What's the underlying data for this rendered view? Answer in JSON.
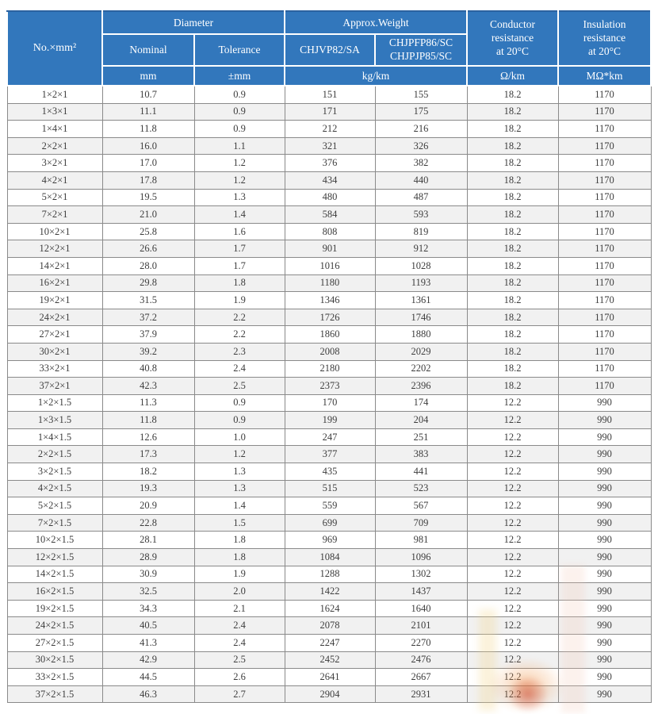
{
  "table": {
    "header": {
      "col_no": "No.×mm²",
      "diameter": "Diameter",
      "nominal": "Nominal",
      "tolerance": "Tolerance",
      "approx_weight": "Approx.Weight",
      "weight_type_1": "CHJVP82/SA",
      "weight_type_2": "CHJPFP86/SC\nCHJPJP85/SC",
      "conductor_resistance": "Conductor\nresistance\nat 20°C",
      "insulation_resistance": "Insulation\nresistance\nat 20°C",
      "unit_mm": "mm",
      "unit_tolerance": "±mm",
      "unit_weight": "kg/km",
      "unit_conductor": "Ω/km",
      "unit_insulation": "MΩ*km"
    },
    "colors": {
      "header_bg": "#3277BC",
      "header_text": "#ffffff",
      "grid": "#8a8a8a",
      "row_bg": "#ffffff",
      "row_alt_bg": "#f1f1f1",
      "text": "#3d3d3d"
    },
    "rows": [
      [
        "1×2×1",
        "10.7",
        "0.9",
        "151",
        "155",
        "18.2",
        "1170"
      ],
      [
        "1×3×1",
        "11.1",
        "0.9",
        "171",
        "175",
        "18.2",
        "1170"
      ],
      [
        "1×4×1",
        "11.8",
        "0.9",
        "212",
        "216",
        "18.2",
        "1170"
      ],
      [
        "2×2×1",
        "16.0",
        "1.1",
        "321",
        "326",
        "18.2",
        "1170"
      ],
      [
        "3×2×1",
        "17.0",
        "1.2",
        "376",
        "382",
        "18.2",
        "1170"
      ],
      [
        "4×2×1",
        "17.8",
        "1.2",
        "434",
        "440",
        "18.2",
        "1170"
      ],
      [
        "5×2×1",
        "19.5",
        "1.3",
        "480",
        "487",
        "18.2",
        "1170"
      ],
      [
        "7×2×1",
        "21.0",
        "1.4",
        "584",
        "593",
        "18.2",
        "1170"
      ],
      [
        "10×2×1",
        "25.8",
        "1.6",
        "808",
        "819",
        "18.2",
        "1170"
      ],
      [
        "12×2×1",
        "26.6",
        "1.7",
        "901",
        "912",
        "18.2",
        "1170"
      ],
      [
        "14×2×1",
        "28.0",
        "1.7",
        "1016",
        "1028",
        "18.2",
        "1170"
      ],
      [
        "16×2×1",
        "29.8",
        "1.8",
        "1180",
        "1193",
        "18.2",
        "1170"
      ],
      [
        "19×2×1",
        "31.5",
        "1.9",
        "1346",
        "1361",
        "18.2",
        "1170"
      ],
      [
        "24×2×1",
        "37.2",
        "2.2",
        "1726",
        "1746",
        "18.2",
        "1170"
      ],
      [
        "27×2×1",
        "37.9",
        "2.2",
        "1860",
        "1880",
        "18.2",
        "1170"
      ],
      [
        "30×2×1",
        "39.2",
        "2.3",
        "2008",
        "2029",
        "18.2",
        "1170"
      ],
      [
        "33×2×1",
        "40.8",
        "2.4",
        "2180",
        "2202",
        "18.2",
        "1170"
      ],
      [
        "37×2×1",
        "42.3",
        "2.5",
        "2373",
        "2396",
        "18.2",
        "1170"
      ],
      [
        "1×2×1.5",
        "11.3",
        "0.9",
        "170",
        "174",
        "12.2",
        "990"
      ],
      [
        "1×3×1.5",
        "11.8",
        "0.9",
        "199",
        "204",
        "12.2",
        "990"
      ],
      [
        "1×4×1.5",
        "12.6",
        "1.0",
        "247",
        "251",
        "12.2",
        "990"
      ],
      [
        "2×2×1.5",
        "17.3",
        "1.2",
        "377",
        "383",
        "12.2",
        "990"
      ],
      [
        "3×2×1.5",
        "18.2",
        "1.3",
        "435",
        "441",
        "12.2",
        "990"
      ],
      [
        "4×2×1.5",
        "19.3",
        "1.3",
        "515",
        "523",
        "12.2",
        "990"
      ],
      [
        "5×2×1.5",
        "20.9",
        "1.4",
        "559",
        "567",
        "12.2",
        "990"
      ],
      [
        "7×2×1.5",
        "22.8",
        "1.5",
        "699",
        "709",
        "12.2",
        "990"
      ],
      [
        "10×2×1.5",
        "28.1",
        "1.8",
        "969",
        "981",
        "12.2",
        "990"
      ],
      [
        "12×2×1.5",
        "28.9",
        "1.8",
        "1084",
        "1096",
        "12.2",
        "990"
      ],
      [
        "14×2×1.5",
        "30.9",
        "1.9",
        "1288",
        "1302",
        "12.2",
        "990"
      ],
      [
        "16×2×1.5",
        "32.5",
        "2.0",
        "1422",
        "1437",
        "12.2",
        "990"
      ],
      [
        "19×2×1.5",
        "34.3",
        "2.1",
        "1624",
        "1640",
        "12.2",
        "990"
      ],
      [
        "24×2×1.5",
        "40.5",
        "2.4",
        "2078",
        "2101",
        "12.2",
        "990"
      ],
      [
        "27×2×1.5",
        "41.3",
        "2.4",
        "2247",
        "2270",
        "12.2",
        "990"
      ],
      [
        "30×2×1.5",
        "42.9",
        "2.5",
        "2452",
        "2476",
        "12.2",
        "990"
      ],
      [
        "33×2×1.5",
        "44.5",
        "2.6",
        "2641",
        "2667",
        "12.2",
        "990"
      ],
      [
        "37×2×1.5",
        "46.3",
        "2.7",
        "2904",
        "2931",
        "12.2",
        "990"
      ]
    ]
  }
}
